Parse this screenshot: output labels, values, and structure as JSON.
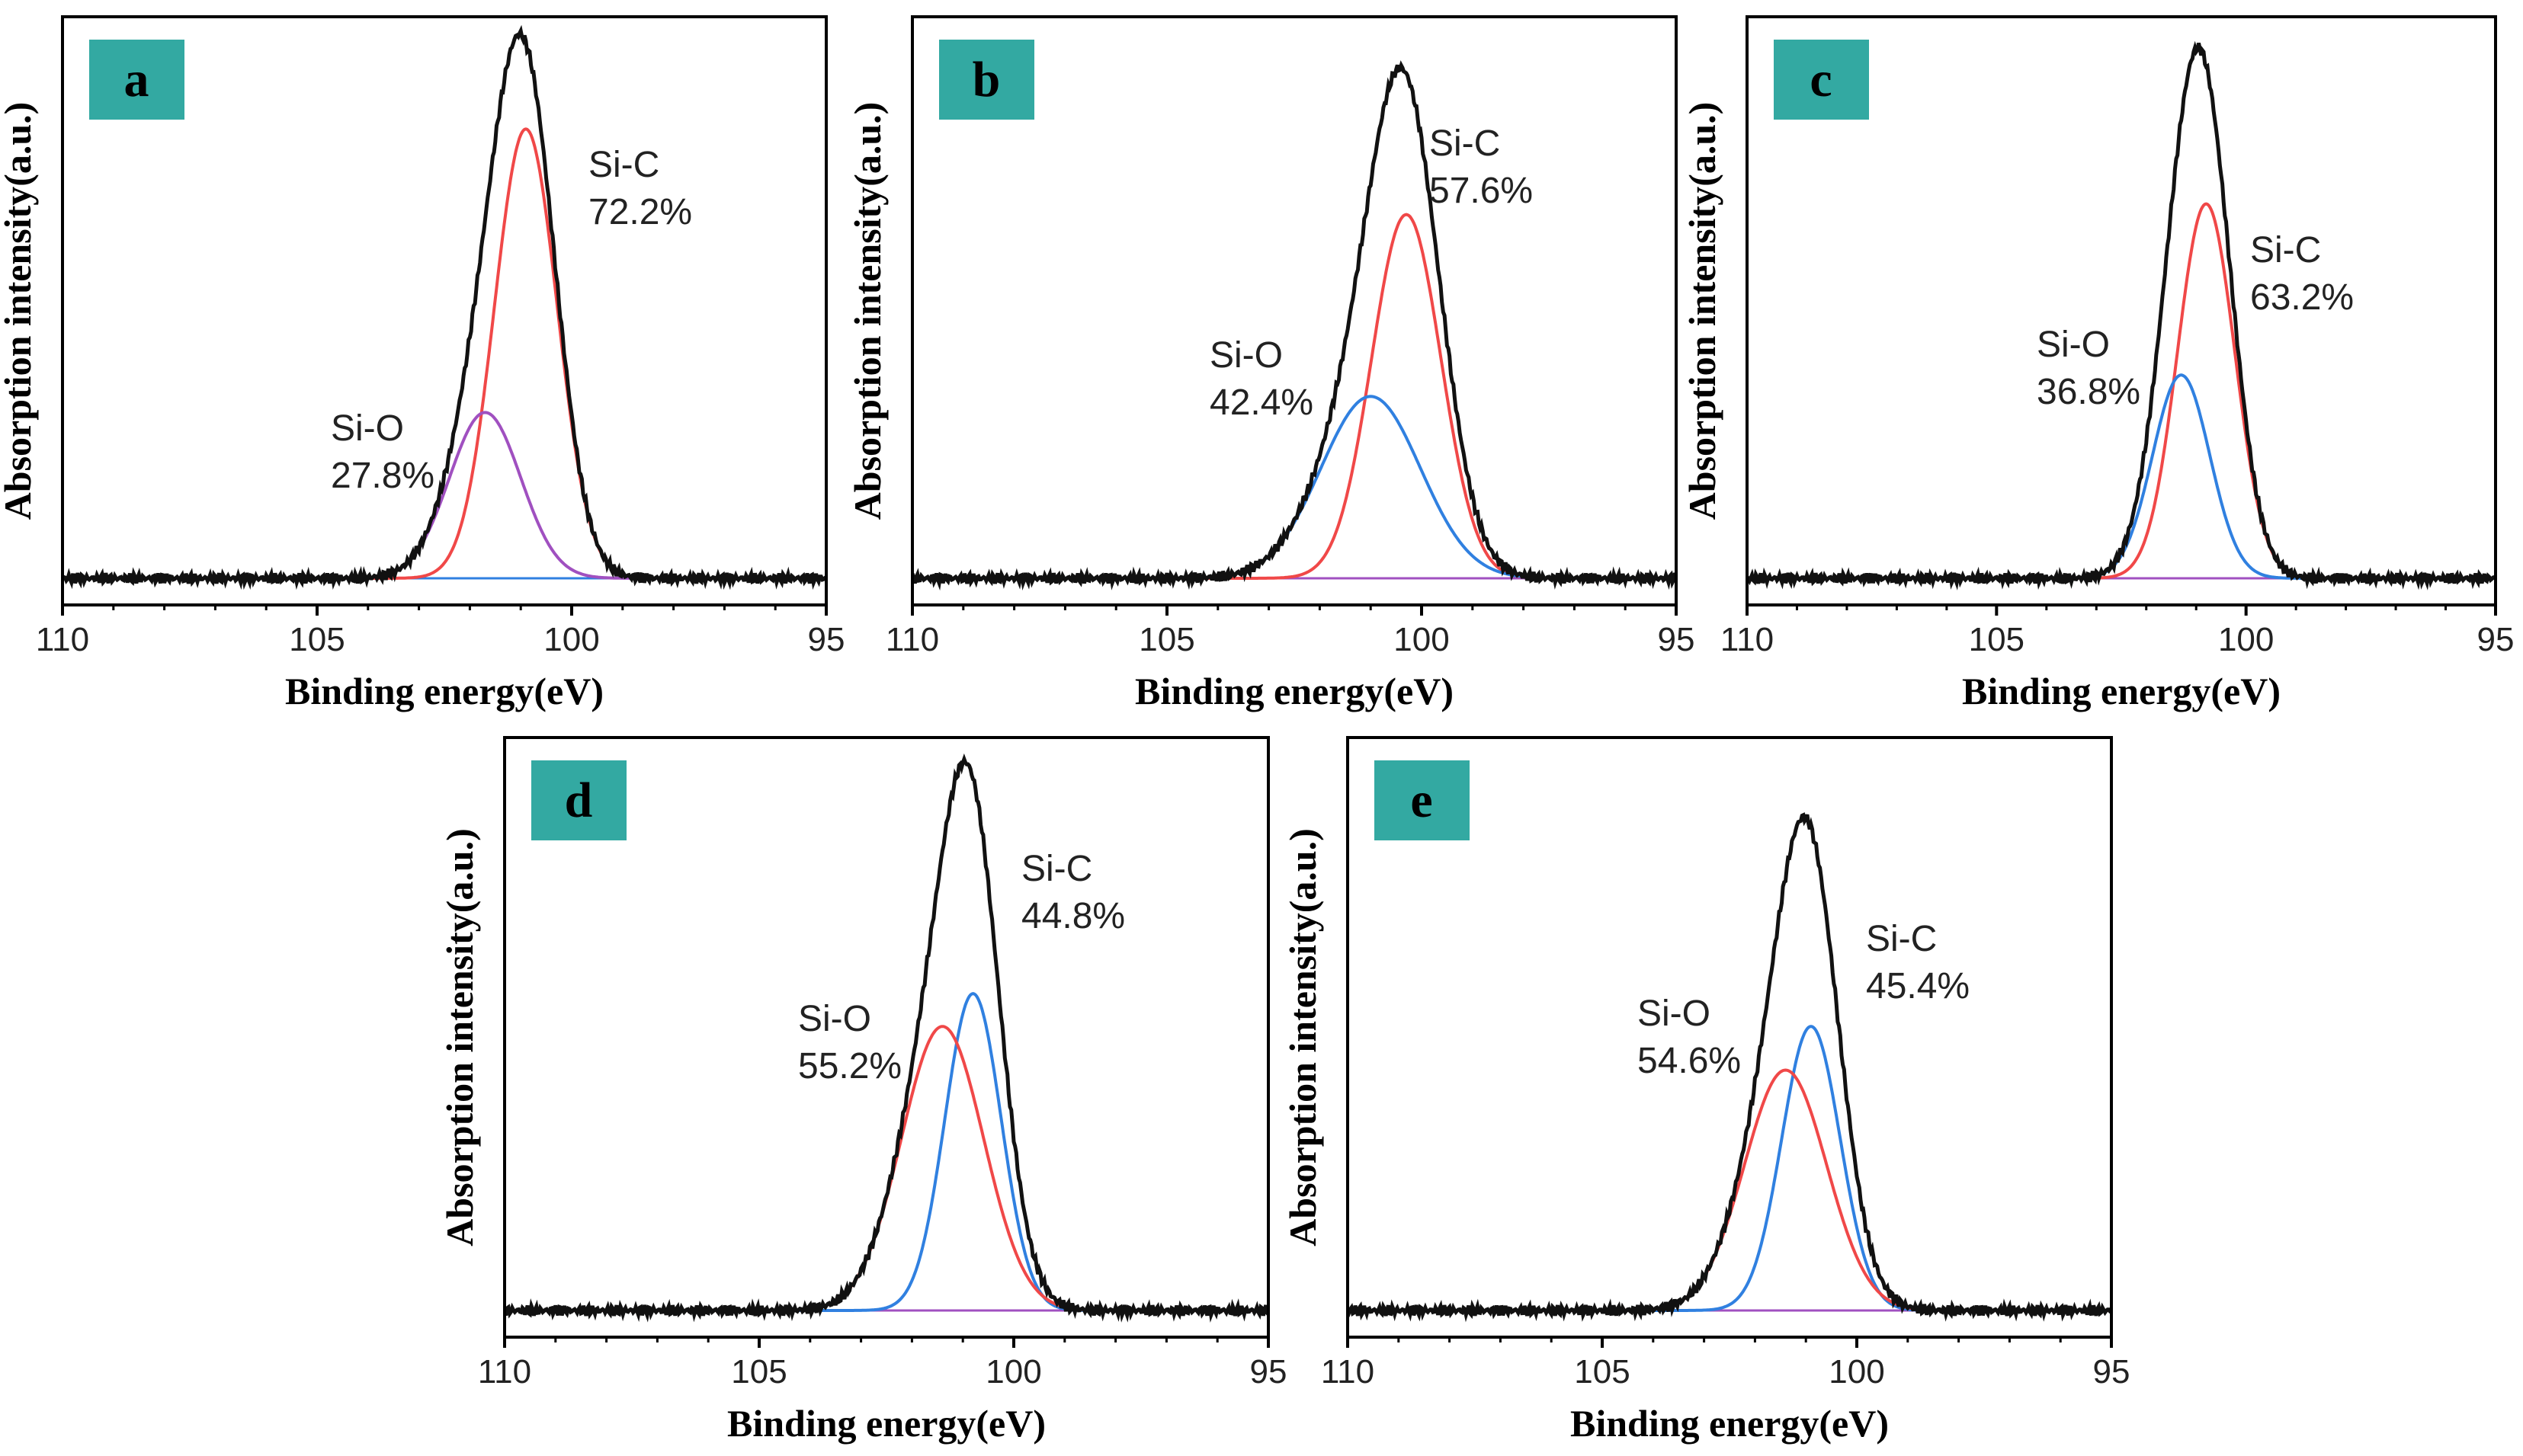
{
  "chart_data": [
    {
      "type": "line",
      "panel_label": "a",
      "xlabel": "Binding energy(eV)",
      "ylabel": "Absorption intensity(a.u.)",
      "xlim": [
        110,
        95
      ],
      "x_ticks": [
        "110",
        "105",
        "100",
        "95"
      ],
      "components": [
        {
          "name": "Si-C",
          "percent_label": "72.2%",
          "center_eV": 100.9,
          "relative_height": 0.84,
          "fwhm_eV": 1.45,
          "color": "#f04848"
        },
        {
          "name": "Si-O",
          "percent_label": "27.8%",
          "center_eV": 101.7,
          "relative_height": 0.31,
          "fwhm_eV": 1.65,
          "color": "#a050c0"
        }
      ],
      "envelope_color": "#111111",
      "baseline_color": "#3080e0"
    },
    {
      "type": "line",
      "panel_label": "b",
      "xlabel": "Binding energy(eV)",
      "ylabel": "Absorption intensity(a.u.)",
      "xlim": [
        110,
        95
      ],
      "x_ticks": [
        "110",
        "105",
        "100",
        "95"
      ],
      "components": [
        {
          "name": "Si-C",
          "percent_label": "57.6%",
          "center_eV": 100.3,
          "relative_height": 0.68,
          "fwhm_eV": 1.6,
          "color": "#f04848"
        },
        {
          "name": "Si-O",
          "percent_label": "42.4%",
          "center_eV": 101.0,
          "relative_height": 0.34,
          "fwhm_eV": 2.3,
          "color": "#3080e0"
        }
      ],
      "envelope_color": "#111111",
      "baseline_color": "#a050c0"
    },
    {
      "type": "line",
      "panel_label": "c",
      "xlabel": "Binding energy(eV)",
      "ylabel": "Absorption intensity(a.u.)",
      "xlim": [
        110,
        95
      ],
      "x_ticks": [
        "110",
        "105",
        "100",
        "95"
      ],
      "components": [
        {
          "name": "Si-C",
          "percent_label": "63.2%",
          "center_eV": 100.8,
          "relative_height": 0.7,
          "fwhm_eV": 1.35,
          "color": "#f04848"
        },
        {
          "name": "Si-O",
          "percent_label": "36.8%",
          "center_eV": 101.3,
          "relative_height": 0.38,
          "fwhm_eV": 1.35,
          "color": "#3080e0"
        }
      ],
      "envelope_color": "#111111",
      "baseline_color": "#a050c0"
    },
    {
      "type": "line",
      "panel_label": "d",
      "xlabel": "Binding energy(eV)",
      "ylabel": "Absorption intensity(a.u.)",
      "xlim": [
        110,
        95
      ],
      "x_ticks": [
        "110",
        "105",
        "100",
        "95"
      ],
      "components": [
        {
          "name": "Si-C",
          "percent_label": "44.8%",
          "center_eV": 100.8,
          "relative_height": 0.58,
          "fwhm_eV": 1.3,
          "color": "#3080e0"
        },
        {
          "name": "Si-O",
          "percent_label": "55.2%",
          "center_eV": 101.4,
          "relative_height": 0.52,
          "fwhm_eV": 1.9,
          "color": "#f04848"
        }
      ],
      "envelope_color": "#111111",
      "baseline_color": "#a050c0"
    },
    {
      "type": "line",
      "panel_label": "e",
      "xlabel": "Binding energy(eV)",
      "ylabel": "Absorption intensity(a.u.)",
      "xlim": [
        110,
        95
      ],
      "x_ticks": [
        "110",
        "105",
        "100",
        "95"
      ],
      "components": [
        {
          "name": "Si-C",
          "percent_label": "45.4%",
          "center_eV": 100.9,
          "relative_height": 0.52,
          "fwhm_eV": 1.35,
          "color": "#3080e0"
        },
        {
          "name": "Si-O",
          "percent_label": "54.6%",
          "center_eV": 101.4,
          "relative_height": 0.44,
          "fwhm_eV": 1.9,
          "color": "#f04848"
        }
      ],
      "envelope_color": "#111111",
      "baseline_color": "#a050c0"
    }
  ],
  "style": {
    "badge_color": "#33a9a2",
    "axis_color": "#000000"
  }
}
